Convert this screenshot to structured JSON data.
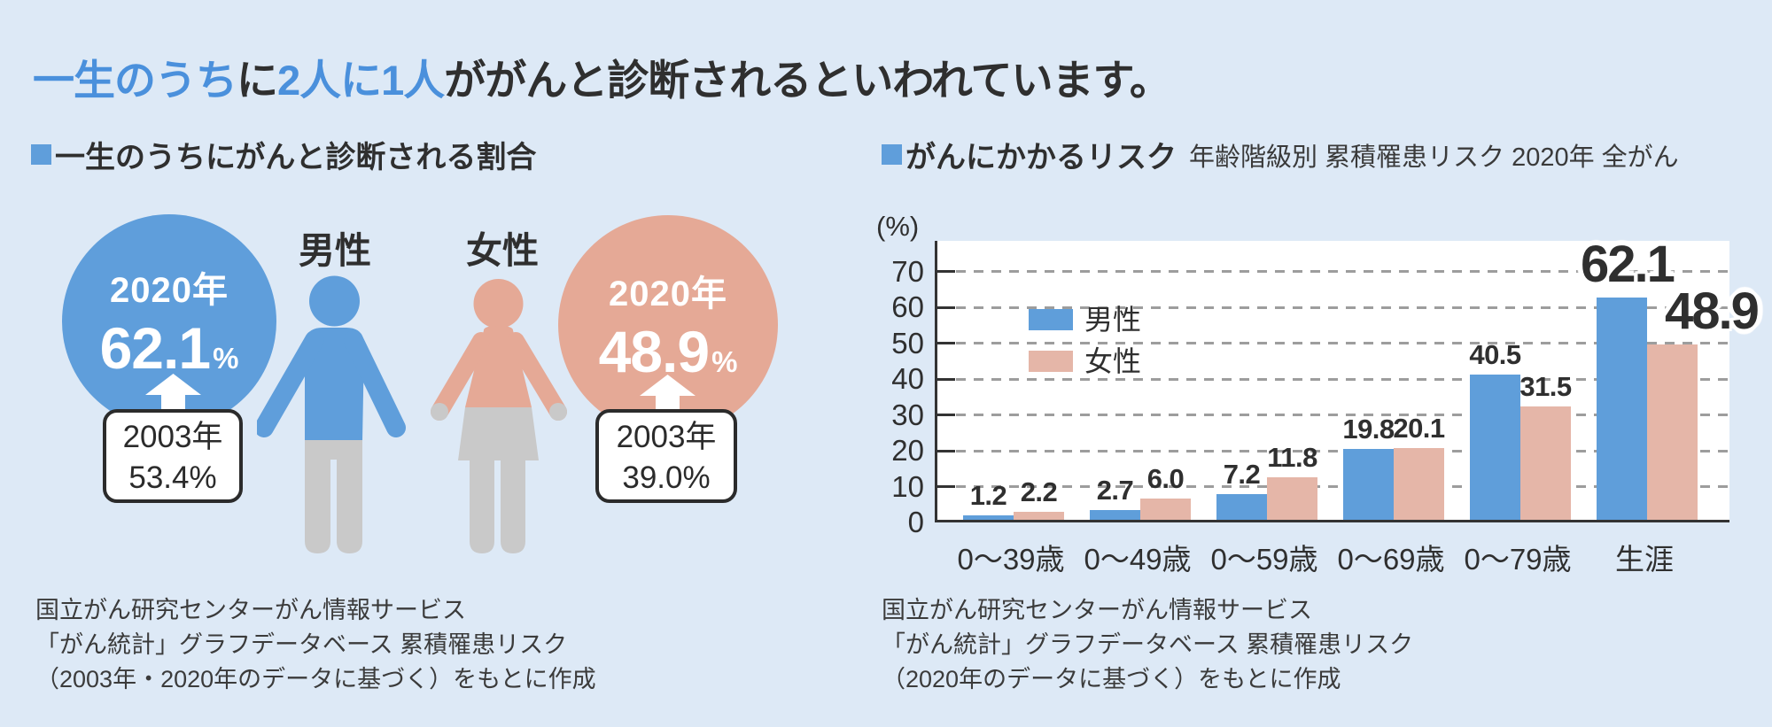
{
  "title": {
    "segments": [
      {
        "text": "一生のうち",
        "emphasis": "blue"
      },
      {
        "text": "に",
        "emphasis": "dark"
      },
      {
        "text": "2人に1人",
        "emphasis": "blue"
      },
      {
        "text": "ががんと診断されるといわれています。",
        "emphasis": "dark"
      }
    ]
  },
  "left_panel": {
    "header": "一生のうちにがんと診断される割合",
    "male": {
      "label": "男性",
      "current_year": "2020年",
      "current_value": "62.1",
      "unit": "%",
      "previous_year": "2003年",
      "previous_value": "53.4%"
    },
    "female": {
      "label": "女性",
      "current_year": "2020年",
      "current_value": "48.9",
      "unit": "%",
      "previous_year": "2003年",
      "previous_value": "39.0%"
    },
    "source_lines": [
      "国立がん研究センターがん情報サービス",
      "「がん統計」グラフデータベース 累積罹患リスク",
      "（2003年・2020年のデータに基づく）をもとに作成"
    ]
  },
  "right_panel": {
    "header": "がんにかかるリスク",
    "header_note": "年齢階級別 累積罹患リスク 2020年 全がん",
    "unit_label": "(%)",
    "source_lines": [
      "国立がん研究センターがん情報サービス",
      "「がん統計」グラフデータベース 累積罹患リスク",
      "（2020年のデータに基づく）をもとに作成"
    ]
  },
  "chart_data": {
    "type": "bar",
    "title": "がんにかかるリスク 年齢階級別 累積罹患リスク 2020年 全がん",
    "categories": [
      "0〜39歳",
      "0〜49歳",
      "0〜59歳",
      "0〜69歳",
      "0〜79歳",
      "生涯"
    ],
    "series": [
      {
        "name": "男性",
        "color": "#5f9eda",
        "values": [
          1.2,
          2.7,
          7.2,
          19.8,
          40.5,
          62.1
        ]
      },
      {
        "name": "女性",
        "color": "#e5b6a8",
        "values": [
          2.2,
          6.0,
          11.8,
          20.1,
          31.5,
          48.9
        ]
      }
    ],
    "xlabel": "",
    "ylabel": "(%)",
    "ylim": [
      0,
      70
    ],
    "ytick_step": 10,
    "grid": true,
    "grid_style": "dashed",
    "legend_position": "upper-left-inside",
    "emphasis_category": "生涯"
  },
  "colors": {
    "background": "#dde9f6",
    "accent_blue": "#5f9edb",
    "accent_pink": "#e5a996",
    "bar_pink": "#e5b6a8",
    "figure_grey": "#c9c9c9",
    "title_blue": "#4a90dc",
    "text_dark": "#2f2f2f"
  }
}
